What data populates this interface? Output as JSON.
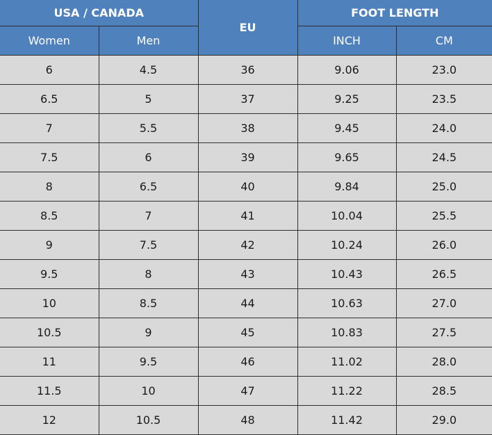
{
  "header": {
    "usa_canada": "USA / CANADA",
    "eu": "EU",
    "foot_length": "FOOT LENGTH",
    "women": "Women",
    "men": "Men",
    "inch": "INCH",
    "cm": "CM"
  },
  "rows": [
    [
      "6",
      "4.5",
      "36",
      "9.06",
      "23.0"
    ],
    [
      "6.5",
      "5",
      "37",
      "9.25",
      "23.5"
    ],
    [
      "7",
      "5.5",
      "38",
      "9.45",
      "24.0"
    ],
    [
      "7.5",
      "6",
      "39",
      "9.65",
      "24.5"
    ],
    [
      "8",
      "6.5",
      "40",
      "9.84",
      "25.0"
    ],
    [
      "8.5",
      "7",
      "41",
      "10.04",
      "25.5"
    ],
    [
      "9",
      "7.5",
      "42",
      "10.24",
      "26.0"
    ],
    [
      "9.5",
      "8",
      "43",
      "10.43",
      "26.5"
    ],
    [
      "10",
      "8.5",
      "44",
      "10.63",
      "27.0"
    ],
    [
      "10.5",
      "9",
      "45",
      "10.83",
      "27.5"
    ],
    [
      "11",
      "9.5",
      "46",
      "11.02",
      "28.0"
    ],
    [
      "11.5",
      "10",
      "47",
      "11.22",
      "28.5"
    ],
    [
      "12",
      "10.5",
      "48",
      "11.42",
      "29.0"
    ]
  ],
  "colors": {
    "header_bg": "#4f81bd",
    "header_text": "#ffffff",
    "cell_bg": "#d9d9d9",
    "border": "#2f2f2f"
  }
}
